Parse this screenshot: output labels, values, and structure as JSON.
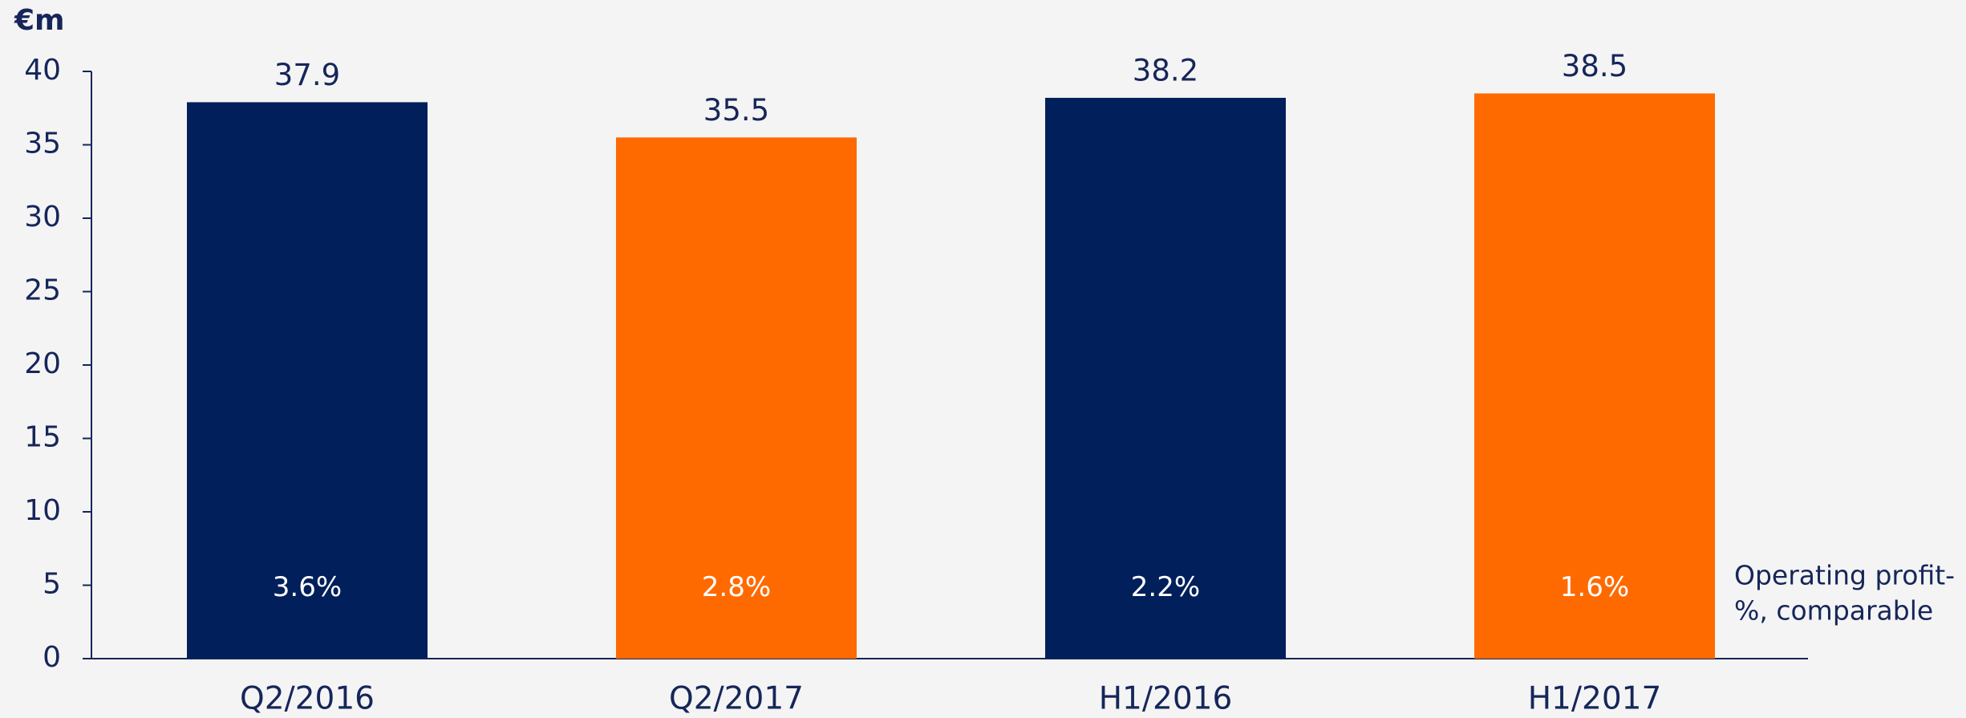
{
  "chart_data": {
    "type": "bar",
    "y_axis_label": "€m",
    "categories": [
      "Q2/2016",
      "Q2/2017",
      "H1/2016",
      "H1/2017"
    ],
    "values": [
      37.9,
      35.5,
      38.2,
      38.5
    ],
    "colors": [
      "#001f5b",
      "#ff6a00",
      "#001f5b",
      "#ff6a00"
    ],
    "inner_labels": [
      "3.6%",
      "2.8%",
      "2.2%",
      "1.6%"
    ],
    "annotation": [
      "Operating profit-",
      "%, comparable"
    ],
    "ylim": [
      0,
      40
    ],
    "yticks": [
      0,
      5,
      10,
      15,
      20,
      25,
      30,
      35,
      40
    ],
    "grid": false
  }
}
